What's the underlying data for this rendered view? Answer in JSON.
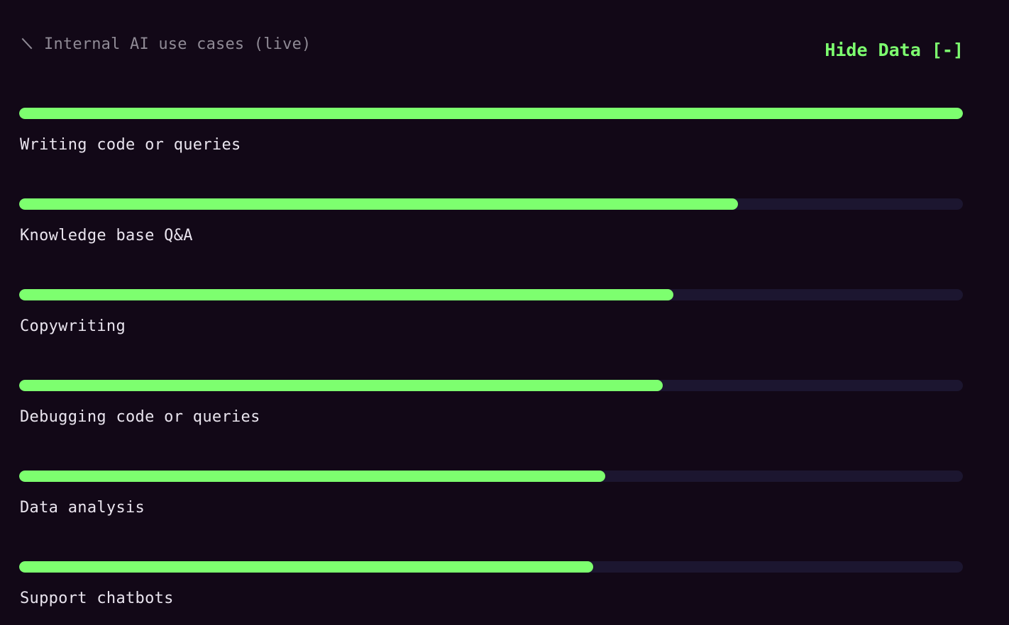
{
  "header": {
    "title": "Internal AI use cases (live)",
    "title_icon": "slash-icon",
    "toggle_label": "Hide Data [-]"
  },
  "colors": {
    "background": "#120817",
    "bar_fill": "#7dff6f",
    "bar_track": "#1c1630",
    "label_text": "#e9e4ee",
    "title_text": "#8f8a95",
    "accent": "#7dff6f"
  },
  "chart_data": {
    "type": "bar",
    "orientation": "horizontal",
    "categories": [
      "Writing code or queries",
      "Knowledge base Q&A",
      "Copywriting",
      "Debugging code or queries",
      "Data analysis",
      "Support chatbots"
    ],
    "values": [
      1.0,
      0.762,
      0.693,
      0.682,
      0.621,
      0.608
    ],
    "xlim": [
      0,
      1
    ],
    "grid": false
  }
}
